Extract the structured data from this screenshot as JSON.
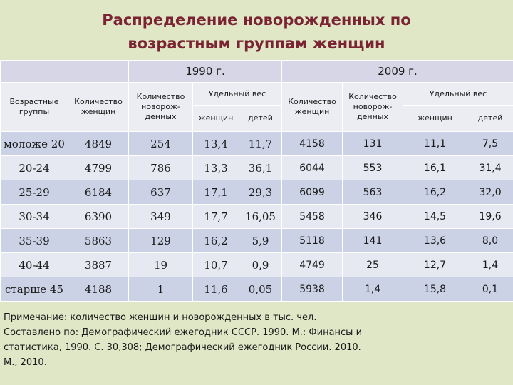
{
  "title": {
    "line1": "Распределение новорожденных по",
    "line2": "возрастным группам женщин"
  },
  "table": {
    "year1990": "1990 г.",
    "year2009": "2009 г.",
    "headers": {
      "age_groups": "Возрастные группы",
      "women_count": "Количество женщин",
      "newborn_count": "Количество новорож-денных",
      "specific_weight": "Удельный вес",
      "women": "женщин",
      "children": "детей"
    },
    "rows": [
      {
        "age": "моложе 20",
        "v1990": [
          "4849",
          "254",
          "13,4",
          "11,7"
        ],
        "v2009": [
          "4158",
          "131",
          "11,1",
          "7,5"
        ]
      },
      {
        "age": "20-24",
        "v1990": [
          "4799",
          "786",
          "13,3",
          "36,1"
        ],
        "v2009": [
          "6044",
          "553",
          "16,1",
          "31,4"
        ]
      },
      {
        "age": "25-29",
        "v1990": [
          "6184",
          "637",
          "17,1",
          "29,3"
        ],
        "v2009": [
          "6099",
          "563",
          "16,2",
          "32,0"
        ]
      },
      {
        "age": "30-34",
        "v1990": [
          "6390",
          "349",
          "17,7",
          "16,05"
        ],
        "v2009": [
          "5458",
          "346",
          "14,5",
          "19,6"
        ]
      },
      {
        "age": "35-39",
        "v1990": [
          "5863",
          "129",
          "16,2",
          "5,9"
        ],
        "v2009": [
          "5118",
          "141",
          "13,6",
          "8,0"
        ]
      },
      {
        "age": "40-44",
        "v1990": [
          "3887",
          "19",
          "10,7",
          "0,9"
        ],
        "v2009": [
          "4749",
          "25",
          "12,7",
          "1,4"
        ]
      },
      {
        "age": "старше 45",
        "v1990": [
          "4188",
          "1",
          "11,6",
          "0,05"
        ],
        "v2009": [
          "5938",
          "1,4",
          "15,8",
          "0,1"
        ]
      }
    ]
  },
  "note": {
    "line1": "Примечание: количество женщин и новорожденных в тыс. чел.",
    "line2": "Составлено по: Демографический ежегодник СССР. 1990. М.: Финансы и",
    "line3": "статистика, 1990. С. 30,308; Демографический ежегодник России. 2010.",
    "line4": "М., 2010."
  }
}
